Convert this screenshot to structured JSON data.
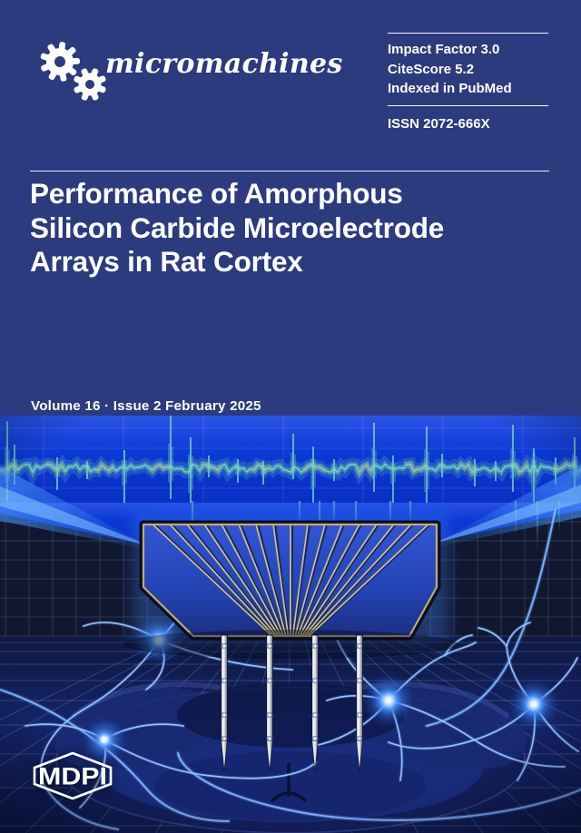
{
  "journal": {
    "name": "micromachines",
    "publisher": "MDPI",
    "metrics": [
      "Impact Factor 3.0",
      "CiteScore 5.2",
      "Indexed in PubMed"
    ],
    "issn": "ISSN 2072-666X"
  },
  "cover": {
    "title_lines": [
      "Performance of Amorphous",
      "Silicon Carbide Microelectrode",
      "Arrays in Rat Cortex"
    ],
    "volume_line": "Volume 16 · Issue 2 February 2025"
  },
  "artwork": {
    "description": "Silicon carbide microelectrode array with four needle shanks implanted over rat cortex, glowing neurons and neural spike recording band",
    "colors": {
      "header_navy": "#2c3b7d",
      "band_blue": "#0c38d4",
      "spike_teal": "#74d6b0",
      "trace_gold": "#d3c27e",
      "beam_blue": "#4896ff",
      "neuron_blue": "#a8cdff",
      "floor_navy": "#13226b",
      "text_white": "#ffffff"
    }
  }
}
